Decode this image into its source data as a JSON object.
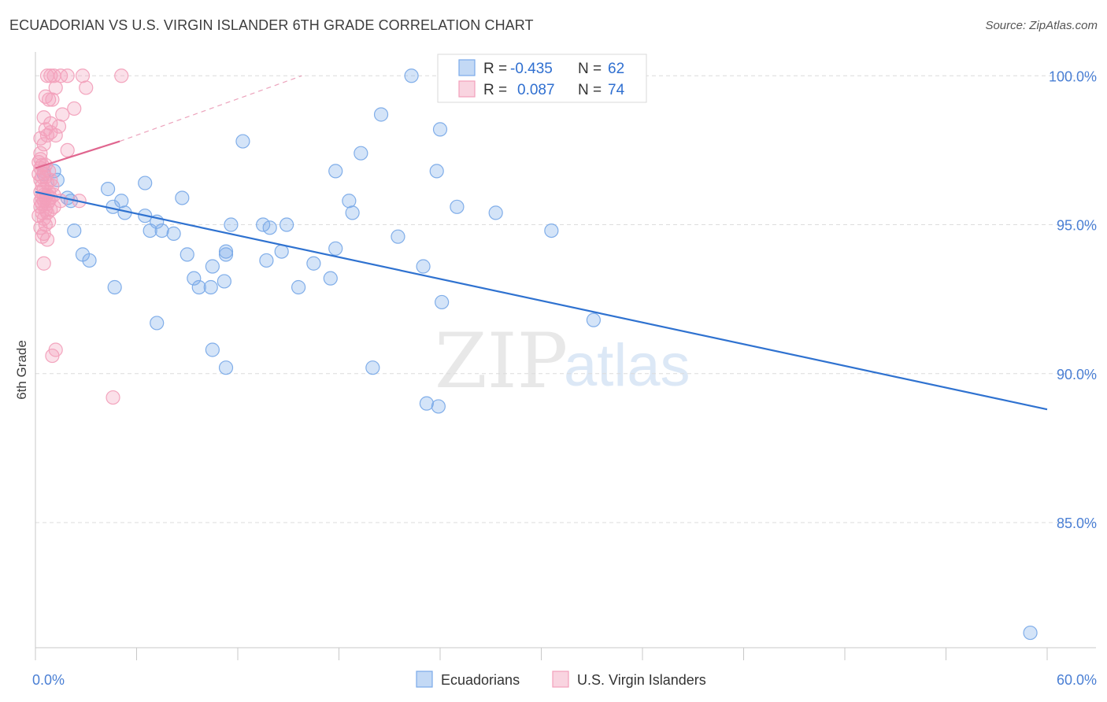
{
  "chart_data": {
    "type": "scatter",
    "title": "ECUADORIAN VS U.S. VIRGIN ISLANDER 6TH GRADE CORRELATION CHART",
    "source": "Source: ZipAtlas.com",
    "xlabel": "",
    "ylabel": "6th Grade",
    "xlim": [
      0,
      60
    ],
    "ylim": [
      80.8,
      100.8
    ],
    "x_tick_labels": [
      "0.0%",
      "60.0%"
    ],
    "y_ticks": [
      {
        "value": 100,
        "label": "100.0%"
      },
      {
        "value": 95,
        "label": "95.0%"
      },
      {
        "value": 90,
        "label": "90.0%"
      },
      {
        "value": 85,
        "label": "85.0%"
      }
    ],
    "watermark": {
      "zip": "ZIP",
      "atlas": "atlas"
    },
    "stats": [
      {
        "r_label": "R =",
        "r_value": "-0.435",
        "n_label": "N =",
        "n_value": "62"
      },
      {
        "r_label": "R =",
        "r_value": "0.087",
        "n_label": "N =",
        "n_value": "74"
      }
    ],
    "series": [
      {
        "name": "Ecuadorians",
        "color": "#7aaae8",
        "line_color": "#2f72d0",
        "trend": {
          "x": [
            0,
            60
          ],
          "y": [
            96.1,
            88.8
          ]
        },
        "points": [
          [
            22.3,
            100.0
          ],
          [
            26.7,
            100.0
          ],
          [
            20.5,
            98.7
          ],
          [
            24.0,
            98.2
          ],
          [
            12.3,
            97.8
          ],
          [
            19.3,
            97.4
          ],
          [
            17.8,
            96.8
          ],
          [
            23.8,
            96.8
          ],
          [
            1.1,
            96.8
          ],
          [
            0.5,
            96.7
          ],
          [
            1.3,
            96.5
          ],
          [
            6.5,
            96.4
          ],
          [
            4.3,
            96.2
          ],
          [
            1.9,
            95.9
          ],
          [
            8.7,
            95.9
          ],
          [
            5.1,
            95.8
          ],
          [
            18.6,
            95.8
          ],
          [
            2.1,
            95.8
          ],
          [
            4.6,
            95.6
          ],
          [
            25.0,
            95.6
          ],
          [
            5.3,
            95.4
          ],
          [
            6.5,
            95.3
          ],
          [
            18.8,
            95.4
          ],
          [
            27.3,
            95.4
          ],
          [
            7.2,
            95.1
          ],
          [
            11.6,
            95.0
          ],
          [
            13.5,
            95.0
          ],
          [
            14.9,
            95.0
          ],
          [
            2.3,
            94.8
          ],
          [
            6.8,
            94.8
          ],
          [
            7.5,
            94.8
          ],
          [
            8.2,
            94.7
          ],
          [
            13.9,
            94.9
          ],
          [
            21.5,
            94.6
          ],
          [
            17.8,
            94.2
          ],
          [
            11.3,
            94.1
          ],
          [
            14.6,
            94.1
          ],
          [
            2.8,
            94.0
          ],
          [
            9.0,
            94.0
          ],
          [
            11.3,
            94.0
          ],
          [
            3.2,
            93.8
          ],
          [
            13.7,
            93.8
          ],
          [
            16.5,
            93.7
          ],
          [
            10.5,
            93.6
          ],
          [
            23.0,
            93.6
          ],
          [
            9.4,
            93.2
          ],
          [
            11.2,
            93.1
          ],
          [
            17.5,
            93.2
          ],
          [
            4.7,
            92.9
          ],
          [
            9.7,
            92.9
          ],
          [
            15.6,
            92.9
          ],
          [
            10.4,
            92.9
          ],
          [
            24.1,
            92.4
          ],
          [
            33.1,
            91.8
          ],
          [
            7.2,
            91.7
          ],
          [
            10.5,
            90.8
          ],
          [
            11.3,
            90.2
          ],
          [
            20.0,
            90.2
          ],
          [
            23.2,
            89.0
          ],
          [
            23.9,
            88.9
          ],
          [
            30.6,
            94.8
          ],
          [
            59.0,
            81.3
          ]
        ]
      },
      {
        "name": "U.S. Virgin Islanders",
        "color": "#f2a0bb",
        "line_color": "#e0668f",
        "trend": {
          "x": [
            0,
            5.0
          ],
          "y": [
            96.9,
            97.8
          ]
        },
        "trend_extension": {
          "x": [
            5.0,
            15.8
          ],
          "y": [
            97.8,
            100.0
          ]
        },
        "points": [
          [
            0.7,
            100.0
          ],
          [
            0.9,
            100.0
          ],
          [
            1.1,
            100.0
          ],
          [
            1.5,
            100.0
          ],
          [
            1.9,
            100.0
          ],
          [
            2.8,
            100.0
          ],
          [
            5.1,
            100.0
          ],
          [
            1.2,
            99.6
          ],
          [
            3.0,
            99.6
          ],
          [
            0.6,
            99.3
          ],
          [
            0.8,
            99.2
          ],
          [
            1.0,
            99.2
          ],
          [
            2.3,
            98.9
          ],
          [
            1.6,
            98.7
          ],
          [
            0.5,
            98.6
          ],
          [
            0.9,
            98.4
          ],
          [
            1.4,
            98.3
          ],
          [
            0.6,
            98.2
          ],
          [
            0.9,
            98.1
          ],
          [
            0.7,
            98.0
          ],
          [
            1.2,
            98.0
          ],
          [
            0.3,
            97.9
          ],
          [
            0.5,
            97.7
          ],
          [
            1.9,
            97.5
          ],
          [
            0.3,
            97.2
          ],
          [
            0.2,
            97.1
          ],
          [
            0.4,
            97.0
          ],
          [
            0.6,
            97.0
          ],
          [
            0.3,
            96.9
          ],
          [
            0.5,
            96.8
          ],
          [
            0.8,
            96.8
          ],
          [
            0.2,
            96.7
          ],
          [
            0.4,
            96.6
          ],
          [
            0.6,
            96.6
          ],
          [
            0.3,
            96.5
          ],
          [
            0.7,
            96.4
          ],
          [
            0.4,
            96.3
          ],
          [
            1.0,
            96.3
          ],
          [
            0.5,
            96.2
          ],
          [
            0.8,
            96.1
          ],
          [
            0.3,
            96.1
          ],
          [
            0.5,
            96.0
          ],
          [
            0.7,
            96.0
          ],
          [
            1.1,
            96.0
          ],
          [
            0.4,
            95.9
          ],
          [
            0.6,
            95.9
          ],
          [
            0.9,
            95.9
          ],
          [
            0.3,
            95.8
          ],
          [
            0.5,
            95.8
          ],
          [
            0.8,
            95.8
          ],
          [
            1.5,
            95.8
          ],
          [
            2.6,
            95.8
          ],
          [
            0.4,
            95.7
          ],
          [
            0.7,
            95.7
          ],
          [
            1.1,
            95.6
          ],
          [
            0.3,
            95.6
          ],
          [
            0.6,
            95.5
          ],
          [
            0.9,
            95.5
          ],
          [
            0.4,
            95.4
          ],
          [
            0.7,
            95.4
          ],
          [
            0.2,
            95.3
          ],
          [
            0.5,
            95.2
          ],
          [
            0.8,
            95.1
          ],
          [
            0.6,
            95.0
          ],
          [
            0.3,
            94.9
          ],
          [
            0.5,
            94.7
          ],
          [
            0.4,
            94.6
          ],
          [
            0.7,
            94.5
          ],
          [
            0.5,
            93.7
          ],
          [
            1.0,
            90.6
          ],
          [
            1.2,
            90.8
          ],
          [
            4.6,
            89.2
          ],
          [
            0.3,
            97.4
          ],
          [
            0.9,
            96.5
          ]
        ]
      }
    ]
  }
}
